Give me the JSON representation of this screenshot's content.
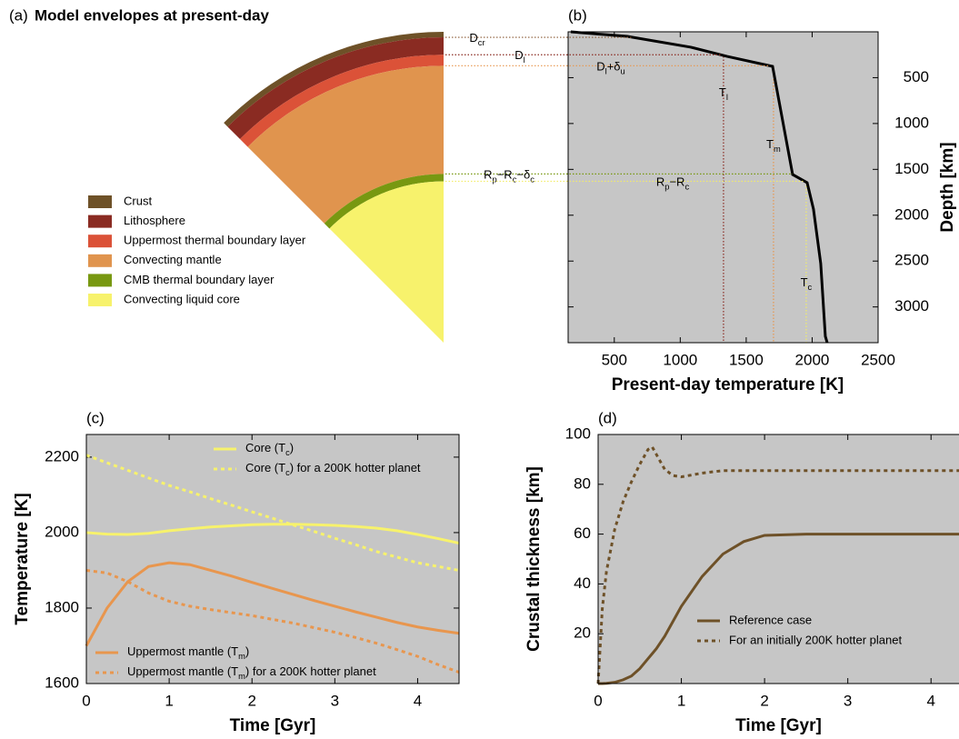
{
  "diagram": {
    "label": "(a)",
    "title": "Model envelopes at present-day",
    "layers": [
      {
        "name": "Crust",
        "color": "#6e5128",
        "bottom_depth": 60
      },
      {
        "name": "Lithosphere",
        "color": "#8a2b22",
        "bottom_depth": 250
      },
      {
        "name": "Uppermost thermal boundary layer",
        "color": "#db5238",
        "bottom_depth": 370
      },
      {
        "name": "Convecting mantle",
        "color": "#e0944e",
        "bottom_depth": 1550
      },
      {
        "name": "CMB thermal boundary layer",
        "color": "#789811",
        "bottom_depth": 1630
      },
      {
        "name": "Convecting liquid core",
        "color": "#f7f26c",
        "bottom_depth": 3390
      }
    ],
    "annotations": [
      {
        "label": [
          "D",
          "cr"
        ],
        "depth": 60,
        "color": "#8a5a35"
      },
      {
        "label": [
          "D",
          "l"
        ],
        "depth": 250,
        "color": "#8a2b22"
      },
      {
        "label": [
          "D",
          "l",
          "+δ",
          "u"
        ],
        "depth": 370,
        "color": "#e8964e"
      },
      {
        "label": [
          "R",
          "p",
          "−R",
          "c",
          "−δ",
          "c"
        ],
        "depth": 1550,
        "color": "#789811"
      },
      {
        "label": [
          "R",
          "p",
          "−R",
          "c"
        ],
        "depth": 1630,
        "color": "#f2ec6a"
      }
    ]
  },
  "chart_data": [
    {
      "type": "line",
      "label": "(b)",
      "x_label": "Present-day temperature [K]",
      "y_label": "Depth [km]",
      "xlim": [
        150,
        2500
      ],
      "xticks": [
        500,
        1000,
        1500,
        2000,
        2500
      ],
      "ylim": [
        0,
        3390
      ],
      "yticks": [
        500,
        1000,
        1500,
        2000,
        2500,
        3000
      ],
      "y_inverted": true,
      "y_axis_side": "right",
      "series": [
        {
          "color": "#000000",
          "x": [
            170,
            598,
            1080,
            1356,
            1700,
            1852,
            1962,
            2010,
            2065,
            2100,
            2114
          ],
          "values": [
            0,
            50,
            168,
            268,
            377,
            1556,
            1645,
            1933,
            2527,
            3320,
            3390
          ]
        }
      ],
      "markers": [
        {
          "label": [
            "T",
            "l"
          ],
          "value": 1328,
          "from_depth": 268,
          "color": "#8a2b22"
        },
        {
          "label": [
            "T",
            "m"
          ],
          "value": 1707,
          "from_depth": 377,
          "color": "#e8964e"
        },
        {
          "label": [
            "T",
            "c"
          ],
          "value": 1955,
          "from_depth": 1645,
          "color": "#f2ec6a"
        }
      ]
    },
    {
      "type": "line",
      "label": "(c)",
      "x_label": "Time [Gyr]",
      "y_label": "Temperature [K]",
      "xlim": [
        0,
        4.5
      ],
      "xticks": [
        0,
        1,
        2,
        3,
        4
      ],
      "ylim": [
        1600,
        2260
      ],
      "yticks": [
        1600,
        1800,
        2000,
        2200
      ],
      "x": [
        0,
        0.25,
        0.5,
        0.75,
        1,
        1.25,
        1.5,
        1.75,
        2,
        2.25,
        2.5,
        2.75,
        3,
        3.25,
        3.5,
        3.75,
        4,
        4.25,
        4.5
      ],
      "series": [
        {
          "name": [
            "Core (T",
            "c",
            ")"
          ],
          "color": "#f7f26c",
          "style": "solid",
          "legend": "upper center",
          "values": [
            2000,
            1996,
            1995,
            1998,
            2005,
            2010,
            2015,
            2018,
            2021,
            2022,
            2022,
            2021,
            2019,
            2016,
            2012,
            2005,
            1995,
            1984,
            1972
          ]
        },
        {
          "name": [
            "Core (T",
            "c",
            ") for a 200K hotter planet"
          ],
          "color": "#f7f26c",
          "style": "dotted",
          "legend": "upper center",
          "values": [
            2205,
            2185,
            2165,
            2145,
            2125,
            2108,
            2090,
            2073,
            2055,
            2038,
            2020,
            2003,
            1985,
            1968,
            1950,
            1935,
            1920,
            1910,
            1900
          ]
        },
        {
          "name": [
            "Uppermost mantle (T",
            "m",
            ")"
          ],
          "color": "#e8964e",
          "style": "solid",
          "legend": "lower left",
          "values": [
            1700,
            1800,
            1870,
            1910,
            1920,
            1915,
            1900,
            1885,
            1868,
            1852,
            1836,
            1820,
            1805,
            1790,
            1776,
            1762,
            1750,
            1741,
            1733
          ]
        },
        {
          "name": [
            "Uppermost mantle (T",
            "m",
            ") for a 200K hotter planet"
          ],
          "color": "#e8964e",
          "style": "dotted",
          "legend": "lower left",
          "values": [
            1900,
            1893,
            1870,
            1840,
            1818,
            1805,
            1796,
            1788,
            1780,
            1770,
            1760,
            1748,
            1736,
            1722,
            1707,
            1690,
            1672,
            1650,
            1630
          ]
        }
      ]
    },
    {
      "type": "line",
      "label": "(d)",
      "x_label": "Time [Gyr]",
      "y_label": "Crustal thickness [km]",
      "xlim": [
        0,
        4.5
      ],
      "xticks": [
        0,
        1,
        2,
        3,
        4
      ],
      "ylim": [
        0,
        100
      ],
      "yticks": [
        20,
        40,
        60,
        80,
        100
      ],
      "x": [
        0,
        0.05,
        0.1,
        0.2,
        0.3,
        0.4,
        0.5,
        0.6,
        0.65,
        0.7,
        0.8,
        0.9,
        1,
        1.25,
        1.5,
        1.75,
        2,
        2.5,
        3,
        3.5,
        4,
        4.5
      ],
      "series": [
        {
          "name": "Reference case",
          "color": "#6e5128",
          "style": "solid",
          "legend": "center right",
          "values": [
            0,
            0,
            0.1,
            0.5,
            1.5,
            3,
            6,
            10,
            12,
            14,
            19,
            25,
            31,
            43,
            52,
            57,
            59.5,
            60,
            60,
            60,
            60,
            60
          ]
        },
        {
          "name": "For an initially 200K hotter planet",
          "color": "#6e5128",
          "style": "dotted",
          "legend": "center right",
          "values": [
            0,
            30,
            45,
            62,
            73,
            81,
            88,
            94,
            95,
            92,
            86,
            83.5,
            83,
            84.5,
            85.5,
            85.5,
            85.5,
            85.5,
            85.5,
            85.5,
            85.5,
            85.5
          ]
        }
      ]
    }
  ]
}
